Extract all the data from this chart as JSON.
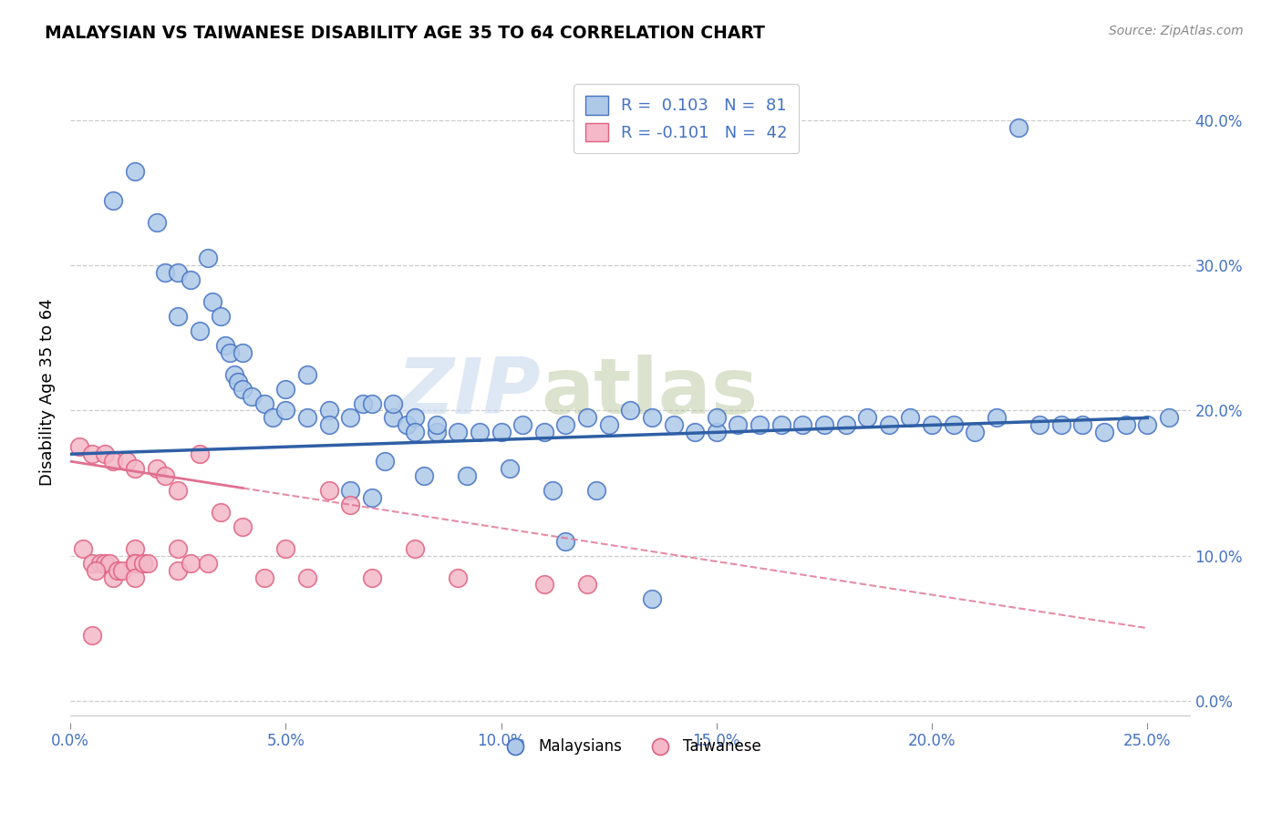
{
  "title": "MALAYSIAN VS TAIWANESE DISABILITY AGE 35 TO 64 CORRELATION CHART",
  "source": "Source: ZipAtlas.com",
  "ylabel": "Disability Age 35 to 64",
  "legend_r1": "R =  0.103   N =  81",
  "legend_r2": "R = -0.101   N =  42",
  "blue_fill": "#aec9e8",
  "blue_edge": "#4472c4",
  "blue_line": "#2f5fa5",
  "pink_fill": "#f4b8c8",
  "pink_edge": "#e06080",
  "pink_line": "#e07090",
  "watermark_zip": "ZIP",
  "watermark_atlas": "atlas",
  "malaysian_x": [
    1.0,
    1.5,
    2.0,
    2.2,
    2.5,
    2.5,
    2.8,
    3.0,
    3.2,
    3.3,
    3.5,
    3.6,
    3.7,
    3.8,
    3.9,
    4.0,
    4.0,
    4.2,
    4.5,
    4.7,
    5.0,
    5.0,
    5.5,
    5.5,
    6.0,
    6.0,
    6.5,
    6.8,
    7.0,
    7.5,
    7.5,
    7.8,
    8.0,
    8.0,
    8.5,
    8.5,
    9.0,
    9.5,
    10.0,
    10.5,
    11.0,
    11.5,
    11.5,
    12.0,
    12.5,
    13.0,
    13.5,
    14.0,
    14.5,
    15.0,
    15.0,
    15.5,
    16.0,
    16.5,
    17.0,
    17.5,
    18.0,
    18.5,
    19.0,
    19.5,
    20.0,
    20.5,
    21.0,
    21.5,
    22.0,
    22.5,
    23.0,
    23.5,
    24.0,
    24.5,
    25.0,
    25.5,
    6.5,
    7.0,
    7.3,
    8.2,
    9.2,
    10.2,
    11.2,
    12.2,
    13.5
  ],
  "malaysian_y": [
    34.5,
    36.5,
    33.0,
    29.5,
    29.5,
    26.5,
    29.0,
    25.5,
    30.5,
    27.5,
    26.5,
    24.5,
    24.0,
    22.5,
    22.0,
    21.5,
    24.0,
    21.0,
    20.5,
    19.5,
    20.0,
    21.5,
    19.5,
    22.5,
    20.0,
    19.0,
    19.5,
    20.5,
    20.5,
    19.5,
    20.5,
    19.0,
    19.5,
    18.5,
    18.5,
    19.0,
    18.5,
    18.5,
    18.5,
    19.0,
    18.5,
    11.0,
    19.0,
    19.5,
    19.0,
    20.0,
    19.5,
    19.0,
    18.5,
    18.5,
    19.5,
    19.0,
    19.0,
    19.0,
    19.0,
    19.0,
    19.0,
    19.5,
    19.0,
    19.5,
    19.0,
    19.0,
    18.5,
    19.5,
    39.5,
    19.0,
    19.0,
    19.0,
    18.5,
    19.0,
    19.0,
    19.5,
    14.5,
    14.0,
    16.5,
    15.5,
    15.5,
    16.0,
    14.5,
    14.5,
    7.0
  ],
  "taiwanese_x": [
    0.2,
    0.3,
    0.5,
    0.5,
    0.7,
    0.8,
    0.8,
    0.9,
    1.0,
    1.0,
    1.1,
    1.2,
    1.3,
    1.5,
    1.5,
    1.5,
    1.5,
    1.5,
    1.7,
    1.8,
    2.0,
    2.2,
    2.5,
    2.5,
    2.5,
    2.8,
    3.0,
    3.5,
    4.0,
    4.5,
    5.0,
    5.5,
    6.0,
    6.5,
    7.0,
    8.0,
    9.0,
    11.0,
    12.0,
    3.2,
    0.5,
    0.6
  ],
  "taiwanese_y": [
    17.5,
    10.5,
    17.0,
    9.5,
    9.5,
    17.0,
    9.5,
    9.5,
    16.5,
    8.5,
    9.0,
    9.0,
    16.5,
    16.0,
    10.5,
    9.5,
    9.5,
    8.5,
    9.5,
    9.5,
    16.0,
    15.5,
    14.5,
    10.5,
    9.0,
    9.5,
    17.0,
    13.0,
    12.0,
    8.5,
    10.5,
    8.5,
    14.5,
    13.5,
    8.5,
    10.5,
    8.5,
    8.0,
    8.0,
    9.5,
    4.5,
    9.0
  ],
  "blue_trendline_x0": 0.0,
  "blue_trendline_y0": 17.0,
  "blue_trendline_x1": 25.0,
  "blue_trendline_y1": 19.5,
  "pink_trendline_x0": 0.0,
  "pink_trendline_y0": 16.5,
  "pink_trendline_x1": 25.0,
  "pink_trendline_y1": 5.0,
  "pink_solid_end": 4.0,
  "xlim": [
    0.0,
    26.0
  ],
  "ylim": [
    -1.5,
    44.0
  ],
  "xtick_vals": [
    0,
    5,
    10,
    15,
    20,
    25
  ],
  "ytick_vals": [
    0,
    10,
    20,
    30,
    40
  ]
}
